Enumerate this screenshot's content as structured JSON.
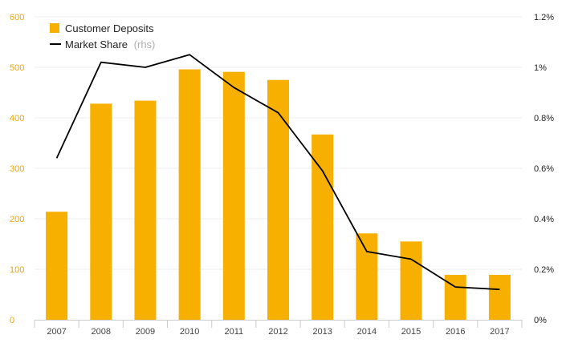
{
  "colors": {
    "bar": "#f8b000",
    "line": "#000000",
    "left_axis_text": "#f0a500",
    "right_axis_text": "#222222",
    "grid": "#ececec",
    "axis": "#cccccc",
    "note": "#b0b0b0"
  },
  "chart_data": {
    "type": "bar",
    "title": "",
    "categories": [
      "2007",
      "2008",
      "2009",
      "2010",
      "2011",
      "2012",
      "2013",
      "2014",
      "2015",
      "2016",
      "2017"
    ],
    "series": [
      {
        "name": "Customer Deposits",
        "type": "bar",
        "axis": "left",
        "values": [
          214,
          428,
          434,
          496,
          491,
          475,
          367,
          171,
          155,
          89,
          89
        ]
      },
      {
        "name": "Market Share",
        "type": "line",
        "axis": "right",
        "values": [
          0.64,
          1.02,
          1.0,
          1.05,
          0.92,
          0.82,
          0.59,
          0.27,
          0.24,
          0.13,
          0.12
        ]
      }
    ],
    "y_left": {
      "min": 0,
      "max": 600,
      "ticks": [
        0,
        100,
        200,
        300,
        400,
        500,
        600
      ],
      "tick_labels": [
        "0",
        "100",
        "200",
        "300",
        "400",
        "500",
        "600"
      ]
    },
    "y_right": {
      "min": 0,
      "max": 1.2,
      "ticks": [
        0,
        0.2,
        0.4,
        0.6,
        0.8,
        1.0,
        1.2
      ],
      "tick_labels": [
        "0%",
        "0.2%",
        "0.4%",
        "0.6%",
        "0.8%",
        "1%",
        "1.2%"
      ]
    },
    "legend": {
      "placement": "top-left",
      "items": [
        {
          "label": "Customer Deposits",
          "note": "",
          "symbol": "square"
        },
        {
          "label": "Market Share",
          "note": "(rhs)",
          "symbol": "line"
        }
      ]
    },
    "grid": true
  }
}
